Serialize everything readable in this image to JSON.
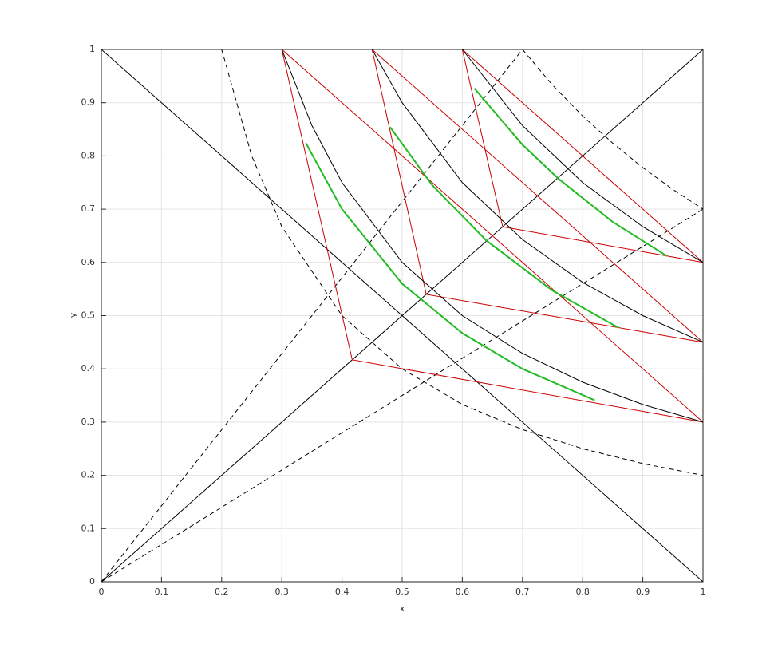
{
  "chart_data": {
    "type": "line",
    "xlabel": "x",
    "ylabel": "y",
    "xlim": [
      0,
      1
    ],
    "ylim": [
      0,
      1
    ],
    "xticks": [
      0,
      0.1,
      0.2,
      0.3,
      0.4,
      0.5,
      0.6,
      0.7,
      0.8,
      0.9,
      1
    ],
    "yticks": [
      0,
      0.1,
      0.2,
      0.3,
      0.4,
      0.5,
      0.6,
      0.7,
      0.8,
      0.9,
      1
    ],
    "grid": true,
    "series": [
      {
        "color": "#000000",
        "linestyle": "-",
        "x": [
          0,
          1
        ],
        "values": [
          0,
          1
        ]
      },
      {
        "color": "#000000",
        "linestyle": "-",
        "x": [
          0,
          1
        ],
        "values": [
          1,
          0
        ]
      },
      {
        "color": "#000000",
        "linestyle": "--",
        "x": [
          0,
          0.7
        ],
        "values": [
          0,
          1
        ]
      },
      {
        "color": "#000000",
        "linestyle": "--",
        "x": [
          0,
          1
        ],
        "values": [
          0,
          0.7
        ]
      },
      {
        "color": "#000000",
        "linestyle": "--",
        "x": [
          0.2,
          0.25,
          0.3,
          0.4,
          0.5,
          0.6,
          0.7,
          0.8,
          0.9,
          1
        ],
        "values": [
          1,
          0.8,
          0.667,
          0.5,
          0.4,
          0.333,
          0.286,
          0.25,
          0.222,
          0.2
        ]
      },
      {
        "color": "#000000",
        "linestyle": "--",
        "x": [
          0.7,
          0.75,
          0.8,
          0.85,
          0.9,
          0.95,
          1
        ],
        "values": [
          1,
          0.933,
          0.875,
          0.824,
          0.778,
          0.737,
          0.7
        ]
      },
      {
        "color": "#cc0000",
        "linestyle": "-",
        "x": [
          0.3,
          1
        ],
        "values": [
          1,
          0.3
        ]
      },
      {
        "color": "#cc0000",
        "linestyle": "-",
        "x": [
          0.3,
          0.417,
          1
        ],
        "values": [
          1,
          0.417,
          0.3
        ]
      },
      {
        "color": "#cc0000",
        "linestyle": "-",
        "x": [
          0.45,
          1
        ],
        "values": [
          1,
          0.45
        ]
      },
      {
        "color": "#cc0000",
        "linestyle": "-",
        "x": [
          0.45,
          0.54,
          1
        ],
        "values": [
          1,
          0.54,
          0.45
        ]
      },
      {
        "color": "#cc0000",
        "linestyle": "-",
        "x": [
          0.6,
          1
        ],
        "values": [
          1,
          0.6
        ]
      },
      {
        "color": "#cc0000",
        "linestyle": "-",
        "x": [
          0.6,
          0.667,
          1
        ],
        "values": [
          1,
          0.667,
          0.6
        ]
      },
      {
        "color": "#000000",
        "linestyle": "-",
        "x": [
          0.3,
          0.35,
          0.4,
          0.5,
          0.6,
          0.7,
          0.8,
          0.9,
          1
        ],
        "values": [
          1,
          0.857,
          0.75,
          0.6,
          0.5,
          0.429,
          0.375,
          0.333,
          0.3
        ]
      },
      {
        "color": "#000000",
        "linestyle": "-",
        "x": [
          0.45,
          0.5,
          0.6,
          0.7,
          0.8,
          0.9,
          1
        ],
        "values": [
          1,
          0.9,
          0.75,
          0.643,
          0.5625,
          0.5,
          0.45
        ]
      },
      {
        "color": "#000000",
        "linestyle": "-",
        "x": [
          0.6,
          0.7,
          0.8,
          0.9,
          1
        ],
        "values": [
          1,
          0.857,
          0.75,
          0.667,
          0.6
        ]
      },
      {
        "color": "#22bb22",
        "linestyle": "-",
        "x": [
          0.34,
          0.4,
          0.5,
          0.6,
          0.7,
          0.82
        ],
        "values": [
          0.824,
          0.7,
          0.56,
          0.467,
          0.4,
          0.341
        ]
      },
      {
        "color": "#22bb22",
        "linestyle": "-",
        "x": [
          0.48,
          0.55,
          0.64,
          0.75,
          0.86
        ],
        "values": [
          0.854,
          0.745,
          0.641,
          0.547,
          0.477
        ]
      },
      {
        "color": "#22bb22",
        "linestyle": "-",
        "x": [
          0.62,
          0.7,
          0.76,
          0.85,
          0.94
        ],
        "values": [
          0.927,
          0.821,
          0.757,
          0.676,
          0.612
        ]
      }
    ]
  }
}
